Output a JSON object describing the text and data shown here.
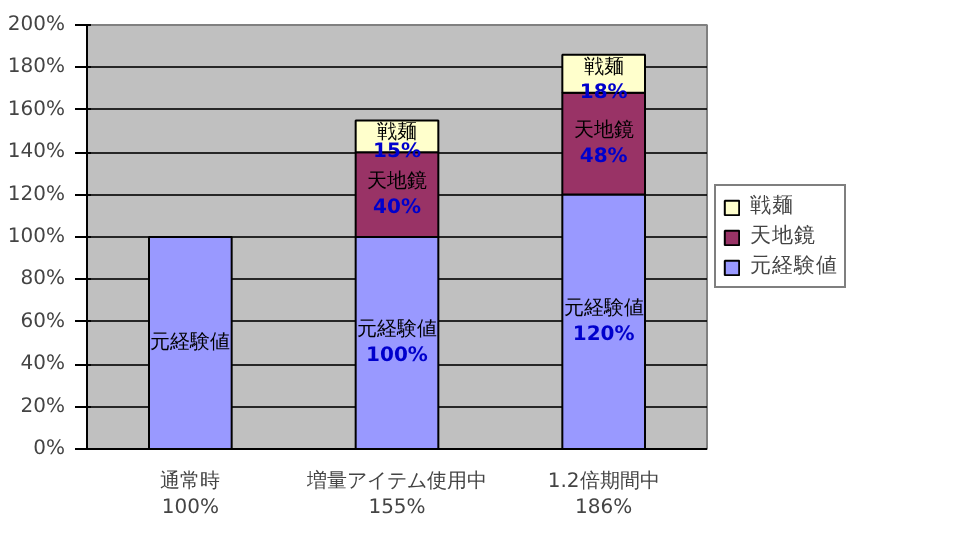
{
  "chart_data": {
    "type": "bar",
    "stacked": true,
    "categories": [
      "通常時\n100%",
      "増量アイテム使用中\n155%",
      "1.2倍期間中\n186%"
    ],
    "series": [
      {
        "name": "元経験値",
        "color": "#9999ff",
        "values": [
          100,
          100,
          120
        ],
        "value_labels": [
          null,
          "100%",
          "120%"
        ]
      },
      {
        "name": "天地鏡",
        "color": "#993366",
        "values": [
          null,
          40,
          48
        ],
        "value_labels": [
          null,
          "40%",
          "48%"
        ]
      },
      {
        "name": "戦麺",
        "color": "#ffffcc",
        "values": [
          null,
          15,
          18
        ],
        "value_labels": [
          null,
          "15%",
          "18%"
        ]
      }
    ],
    "ylim": [
      0,
      200
    ],
    "yticks": [
      {
        "value": 0,
        "label": "0%"
      },
      {
        "value": 20,
        "label": "20%"
      },
      {
        "value": 40,
        "label": "40%"
      },
      {
        "value": 60,
        "label": "60%"
      },
      {
        "value": 80,
        "label": "80%"
      },
      {
        "value": 100,
        "label": "100%"
      },
      {
        "value": 120,
        "label": "120%"
      },
      {
        "value": 140,
        "label": "140%"
      },
      {
        "value": 160,
        "label": "160%"
      },
      {
        "value": 180,
        "label": "180%"
      },
      {
        "value": 200,
        "label": "200%"
      }
    ],
    "grid": "y",
    "legend": "right"
  }
}
